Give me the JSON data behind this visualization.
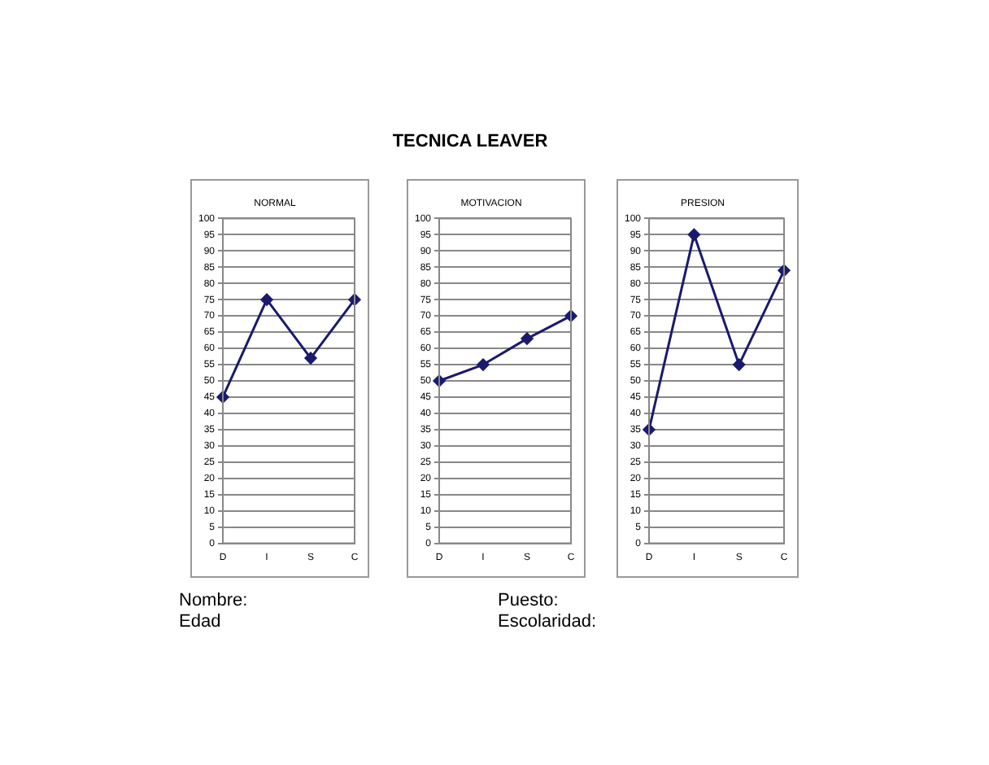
{
  "chart_data": [
    {
      "type": "other",
      "title": "TECNICA LEAVER"
    },
    {
      "type": "line",
      "title": "NORMAL",
      "categories": [
        "D",
        "I",
        "S",
        "C"
      ],
      "series": [
        {
          "color": "#1a1a6e",
          "values": [
            45,
            75,
            57,
            75
          ]
        }
      ],
      "ylim": [
        0,
        100
      ],
      "yticks": [
        0,
        5,
        10,
        15,
        20,
        25,
        30,
        35,
        40,
        45,
        50,
        55,
        60,
        65,
        70,
        75,
        80,
        85,
        90,
        95,
        100
      ],
      "grid": "y",
      "marker": "diamond",
      "legend": false
    },
    {
      "type": "line",
      "title": "MOTIVACION",
      "categories": [
        "D",
        "I",
        "S",
        "C"
      ],
      "series": [
        {
          "color": "#1a1a6e",
          "values": [
            50,
            55,
            63,
            70
          ]
        }
      ],
      "ylim": [
        0,
        100
      ],
      "yticks": [
        0,
        5,
        10,
        15,
        20,
        25,
        30,
        35,
        40,
        45,
        50,
        55,
        60,
        65,
        70,
        75,
        80,
        85,
        90,
        95,
        100
      ],
      "grid": "y",
      "marker": "diamond",
      "legend": false
    },
    {
      "type": "line",
      "title": "PRESION",
      "categories": [
        "D",
        "I",
        "S",
        "C"
      ],
      "series": [
        {
          "color": "#1a1a6e",
          "values": [
            35,
            95,
            55,
            84
          ]
        }
      ],
      "ylim": [
        0,
        100
      ],
      "yticks": [
        0,
        5,
        10,
        15,
        20,
        25,
        30,
        35,
        40,
        45,
        50,
        55,
        60,
        65,
        70,
        75,
        80,
        85,
        90,
        95,
        100
      ],
      "grid": "y",
      "marker": "diamond",
      "legend": false
    },
    {
      "type": "other",
      "annotations": [
        "Nombre:",
        "Edad",
        "Puesto:",
        "Escolaridad:"
      ]
    }
  ]
}
